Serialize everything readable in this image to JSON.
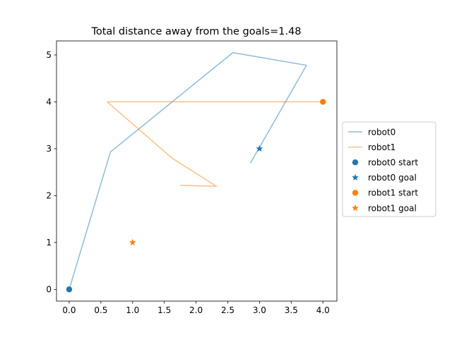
{
  "chart_data": {
    "type": "line",
    "title": "Total distance away from the goals=1.48",
    "xlabel": "",
    "ylabel": "",
    "xlim": [
      -0.2,
      4.22
    ],
    "ylim": [
      -0.25,
      5.3
    ],
    "xticks": [
      0.0,
      0.5,
      1.0,
      1.5,
      2.0,
      2.5,
      3.0,
      3.5,
      4.0
    ],
    "xtick_labels": [
      "0.0",
      "0.5",
      "1.0",
      "1.5",
      "2.0",
      "2.5",
      "3.0",
      "3.5",
      "4.0"
    ],
    "yticks": [
      0,
      1,
      2,
      3,
      4,
      5
    ],
    "ytick_labels": [
      "0",
      "1",
      "2",
      "3",
      "4",
      "5"
    ],
    "grid": false,
    "legend_position": "center-right outside",
    "series": [
      {
        "name": "robot0",
        "kind": "line",
        "color": "#1f77b4",
        "alpha": 0.5,
        "points": [
          [
            0.0,
            0.0
          ],
          [
            0.65,
            2.93
          ],
          [
            2.58,
            5.05
          ],
          [
            3.74,
            4.78
          ],
          [
            2.86,
            2.7
          ]
        ]
      },
      {
        "name": "robot1",
        "kind": "line",
        "color": "#ff7f0e",
        "alpha": 0.5,
        "points": [
          [
            4.0,
            4.0
          ],
          [
            0.6,
            4.0
          ],
          [
            1.62,
            2.8
          ],
          [
            2.32,
            2.2
          ],
          [
            1.76,
            2.22
          ]
        ]
      },
      {
        "name": "robot0 start",
        "kind": "marker",
        "marker": "circle",
        "color": "#1f77b4",
        "points": [
          [
            0.0,
            0.0
          ]
        ]
      },
      {
        "name": "robot0 goal",
        "kind": "marker",
        "marker": "star",
        "color": "#1f77b4",
        "points": [
          [
            3.0,
            3.0
          ]
        ]
      },
      {
        "name": "robot1 start",
        "kind": "marker",
        "marker": "circle",
        "color": "#ff7f0e",
        "points": [
          [
            4.0,
            4.0
          ]
        ]
      },
      {
        "name": "robot1 goal",
        "kind": "marker",
        "marker": "star",
        "color": "#ff7f0e",
        "points": [
          [
            1.0,
            1.0
          ]
        ]
      }
    ]
  }
}
